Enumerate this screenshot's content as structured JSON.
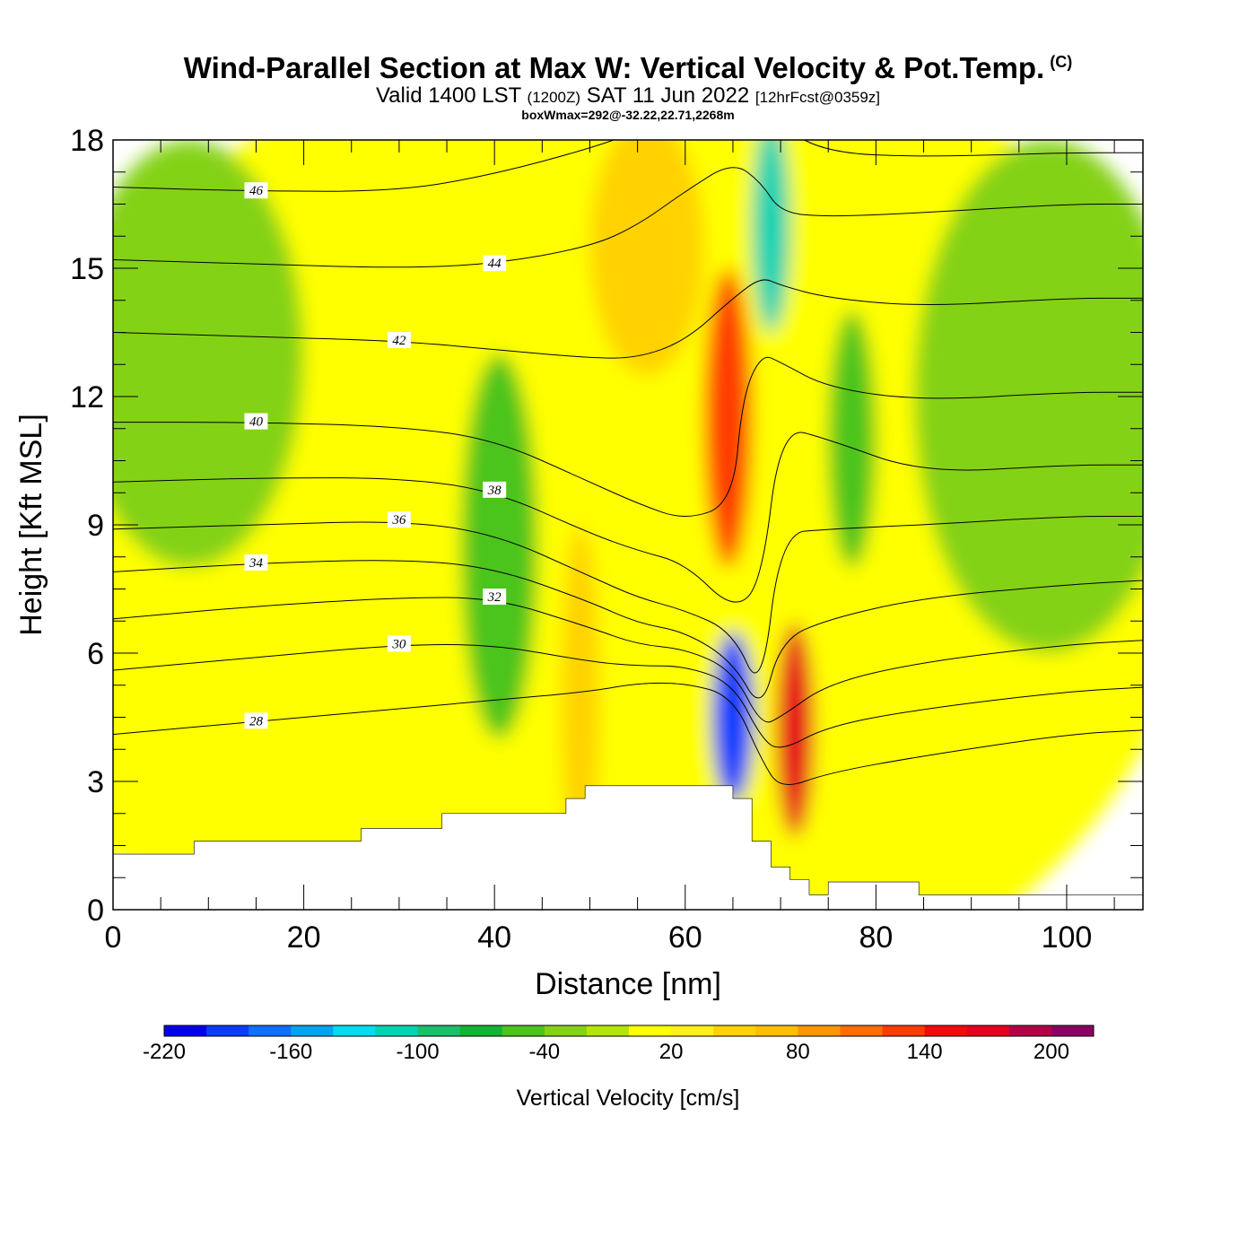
{
  "header": {
    "title": "Wind-Parallel Section at Max W: Vertical Velocity & Pot.Temp.",
    "copyright": "(C)",
    "valid_prefix": "Valid 1400 LST",
    "valid_utc": "(1200Z)",
    "valid_date": "SAT 11 Jun 2022",
    "forecast": "[12hrFcst@0359z]",
    "box_info": "boxWmax=292@-32.22,22.71,2268m"
  },
  "chart_data": {
    "type": "heatmap",
    "title": "Wind-Parallel Section at Max W: Vertical Velocity & Pot.Temp.",
    "xlabel": "Distance [nm]",
    "ylabel": "Height [Kft MSL]",
    "xlim": [
      0,
      108
    ],
    "ylim": [
      0,
      18
    ],
    "x_ticks": [
      0,
      20,
      40,
      60,
      80,
      100
    ],
    "y_ticks": [
      0,
      3,
      6,
      9,
      12,
      15,
      18
    ],
    "x_tick_labels": [
      "0",
      "20",
      "40",
      "60",
      "80",
      "100"
    ],
    "y_tick_labels": [
      "0",
      "3",
      "6",
      "9",
      "12",
      "15",
      "18"
    ],
    "colorbar": {
      "title": "Vertical Velocity [cm/s]",
      "boundaries": [
        -220,
        -200,
        -180,
        -160,
        -140,
        -120,
        -100,
        -80,
        -60,
        -40,
        -20,
        0,
        20,
        40,
        60,
        80,
        100,
        120,
        140,
        160,
        180,
        200,
        220
      ],
      "colors": [
        "#0000ee",
        "#0a3cff",
        "#0f6fff",
        "#00a4f0",
        "#00dcf0",
        "#00d2b4",
        "#18c068",
        "#12b432",
        "#4cc41c",
        "#84d214",
        "#b4e605",
        "#ffff00",
        "#fff014",
        "#ffd200",
        "#ffbe00",
        "#ff9600",
        "#ff6e00",
        "#ff3c00",
        "#f50a0a",
        "#e6001e",
        "#b40046",
        "#8c0064"
      ],
      "tick_values": [
        -220,
        -160,
        -100,
        -40,
        20,
        80,
        140,
        200
      ],
      "tick_labels": [
        "-220",
        "-160",
        "-100",
        "-40",
        "20",
        "80",
        "140",
        "200"
      ]
    },
    "terrain_kft": {
      "x": [
        0,
        8.5,
        8.5,
        26,
        26,
        34.5,
        34.5,
        47.5,
        47.5,
        49.5,
        49.5,
        65,
        65,
        67,
        67,
        69,
        69,
        71,
        71,
        73,
        73,
        75,
        75,
        84.5,
        84.5,
        108
      ],
      "y": [
        1.3,
        1.3,
        1.6,
        1.6,
        1.9,
        1.9,
        2.25,
        2.25,
        2.6,
        2.6,
        2.9,
        2.9,
        2.6,
        2.6,
        1.6,
        1.6,
        1.0,
        1.0,
        0.7,
        0.7,
        0.35,
        0.35,
        0.65,
        0.65,
        0.35,
        0.35
      ]
    },
    "w_features": [
      {
        "name": "background",
        "x": 54,
        "y": 9,
        "rx": 60,
        "ry": 12,
        "value": 0
      },
      {
        "name": "lower-yellow-band",
        "x": 25,
        "y": 4,
        "rx": 35,
        "ry": 4,
        "value": 10
      },
      {
        "name": "left-upper-green",
        "x": 8,
        "y": 13,
        "rx": 12,
        "ry": 5,
        "value": -25
      },
      {
        "name": "right-upper-green",
        "x": 98,
        "y": 12,
        "rx": 14,
        "ry": 6,
        "value": -25
      },
      {
        "name": "downdraft-40nm",
        "x": 40.5,
        "y": 8.5,
        "rx": 4,
        "ry": 4.5,
        "value": -45
      },
      {
        "name": "downdraft-40nm-core",
        "x": 40.5,
        "y": 7.5,
        "rx": 2,
        "ry": 3,
        "value": -55
      },
      {
        "name": "updraft-50nm",
        "x": 49,
        "y": 5,
        "rx": 2,
        "ry": 4,
        "value": 45
      },
      {
        "name": "updraft-aloft-56nm",
        "x": 56,
        "y": 15.5,
        "rx": 6,
        "ry": 3,
        "value": 55
      },
      {
        "name": "updraft-aloft-64nm",
        "x": 64.5,
        "y": 11.5,
        "rx": 2.5,
        "ry": 3.5,
        "value": 120
      },
      {
        "name": "downdraft-aloft-69nm",
        "x": 69,
        "y": 16,
        "rx": 2,
        "ry": 2.5,
        "value": -110
      },
      {
        "name": "downdraft-lee-77nm",
        "x": 77.5,
        "y": 11,
        "rx": 2.5,
        "ry": 3,
        "value": -50
      },
      {
        "name": "downdraft-core-65nm",
        "x": 65,
        "y": 4.5,
        "rx": 2.2,
        "ry": 2,
        "value": -200
      },
      {
        "name": "updraft-core-71nm",
        "x": 71.5,
        "y": 4.2,
        "rx": 2,
        "ry": 2.5,
        "value": 175
      }
    ],
    "theta_contours": [
      {
        "label": "28",
        "x": [
          0,
          15,
          30,
          40,
          50,
          55,
          60,
          65,
          68,
          70,
          75,
          85,
          100,
          108
        ],
        "y": [
          4.1,
          4.4,
          4.7,
          4.9,
          5.1,
          5.3,
          5.3,
          5.0,
          3.5,
          2.8,
          3.2,
          3.6,
          4.1,
          4.2
        ]
      },
      {
        "label": "30",
        "x": [
          0,
          15,
          30,
          40,
          50,
          55,
          60,
          65,
          68,
          70,
          75,
          85,
          100,
          108
        ],
        "y": [
          5.6,
          5.9,
          6.2,
          6.2,
          5.8,
          5.7,
          5.7,
          5.3,
          4.0,
          3.7,
          4.3,
          4.7,
          5.1,
          5.2
        ]
      },
      {
        "label": "32",
        "x": [
          0,
          15,
          30,
          40,
          50,
          55,
          60,
          65,
          68,
          70,
          75,
          85,
          100,
          108
        ],
        "y": [
          6.8,
          7.1,
          7.3,
          7.3,
          6.6,
          6.2,
          6.1,
          5.6,
          4.3,
          4.5,
          5.3,
          5.8,
          6.2,
          6.3
        ]
      },
      {
        "label": "34",
        "x": [
          0,
          15,
          30,
          40,
          50,
          55,
          60,
          65,
          68,
          70,
          75,
          85,
          100,
          108
        ],
        "y": [
          7.9,
          8.1,
          8.2,
          8.0,
          7.2,
          6.7,
          6.5,
          5.8,
          4.6,
          6.3,
          6.8,
          7.3,
          7.6,
          7.7
        ]
      },
      {
        "label": "36",
        "x": [
          0,
          15,
          30,
          40,
          50,
          55,
          60,
          65,
          68,
          70,
          75,
          85,
          100,
          108
        ],
        "y": [
          8.9,
          9.0,
          9.1,
          8.8,
          7.8,
          7.3,
          7.0,
          6.5,
          5.0,
          8.8,
          8.9,
          9.0,
          9.2,
          9.2
        ]
      },
      {
        "label": "38",
        "x": [
          0,
          15,
          30,
          40,
          50,
          55,
          60,
          65,
          68,
          70,
          75,
          85,
          100,
          108
        ],
        "y": [
          10.0,
          10.1,
          10.1,
          9.8,
          8.8,
          8.4,
          8.1,
          7.0,
          7.6,
          11.3,
          11.0,
          10.2,
          10.4,
          10.4
        ]
      },
      {
        "label": "40",
        "x": [
          0,
          15,
          30,
          40,
          50,
          55,
          60,
          65,
          66,
          68,
          70,
          75,
          85,
          100,
          108
        ],
        "y": [
          11.4,
          11.4,
          11.3,
          11.0,
          10.0,
          9.5,
          9.1,
          9.5,
          12.0,
          13.0,
          12.8,
          12.2,
          11.9,
          12.1,
          12.1
        ]
      },
      {
        "label": "42",
        "x": [
          0,
          15,
          30,
          40,
          50,
          55,
          60,
          65,
          68,
          70,
          75,
          85,
          100,
          108
        ],
        "y": [
          13.5,
          13.4,
          13.3,
          13.1,
          12.9,
          12.9,
          13.3,
          14.3,
          14.8,
          14.6,
          14.3,
          14.1,
          14.3,
          14.3
        ]
      },
      {
        "label": "44",
        "x": [
          0,
          15,
          30,
          40,
          50,
          55,
          60,
          65,
          68,
          70,
          75,
          85,
          100,
          108
        ],
        "y": [
          15.2,
          15.1,
          15.0,
          15.1,
          15.5,
          16.0,
          16.8,
          17.5,
          17.0,
          16.3,
          16.2,
          16.3,
          16.5,
          16.5
        ]
      },
      {
        "label": "46",
        "x": [
          0,
          15,
          30,
          40,
          50,
          55,
          60,
          65,
          70,
          75,
          85,
          100,
          108
        ],
        "y": [
          16.9,
          16.8,
          16.8,
          17.2,
          17.8,
          18.2,
          18.5,
          18.6,
          18.3,
          17.7,
          17.6,
          17.7,
          17.7
        ]
      }
    ]
  }
}
